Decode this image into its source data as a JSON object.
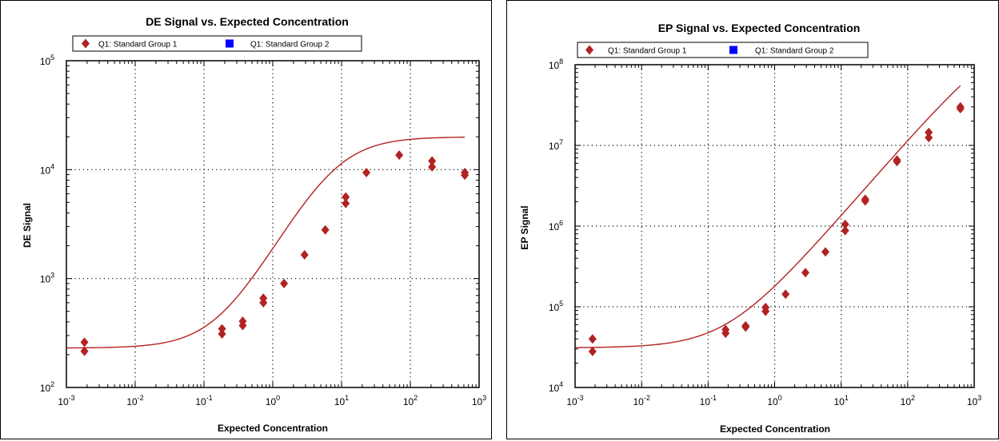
{
  "chart_data": [
    {
      "type": "scatter",
      "title": "DE Signal vs. Expected Concentration",
      "xlabel": "Expected Concentration",
      "ylabel": "DE Signal",
      "xscale": "log",
      "yscale": "log",
      "xlim": [
        0.001,
        1000
      ],
      "ylim": [
        100,
        100000
      ],
      "grid": true,
      "legend_position": "top",
      "x_ticks": [
        {
          "base": "10",
          "exp": "-3",
          "v": 0.001
        },
        {
          "base": "10",
          "exp": "-2",
          "v": 0.01
        },
        {
          "base": "10",
          "exp": "-1",
          "v": 0.1
        },
        {
          "base": "10",
          "exp": "0",
          "v": 1
        },
        {
          "base": "10",
          "exp": "1",
          "v": 10
        },
        {
          "base": "10",
          "exp": "2",
          "v": 100
        },
        {
          "base": "10",
          "exp": "3",
          "v": 1000
        }
      ],
      "y_ticks": [
        {
          "base": "10",
          "exp": "2",
          "v": 100
        },
        {
          "base": "10",
          "exp": "3",
          "v": 1000
        },
        {
          "base": "10",
          "exp": "4",
          "v": 10000
        },
        {
          "base": "10",
          "exp": "5",
          "v": 100000
        }
      ],
      "series": [
        {
          "name": "Q1: Standard Group 1",
          "color": "#b22222",
          "marker": "diamond",
          "points": [
            [
              0.00183,
              260
            ],
            [
              0.00183,
              215
            ],
            [
              0.183,
              345
            ],
            [
              0.183,
              310
            ],
            [
              0.366,
              405
            ],
            [
              0.366,
              370
            ],
            [
              0.73,
              660
            ],
            [
              0.73,
              600
            ],
            [
              1.46,
              900
            ],
            [
              2.9,
              1650
            ],
            [
              5.8,
              2800
            ],
            [
              11.5,
              5600
            ],
            [
              11.5,
              4900
            ],
            [
              23,
              9400
            ],
            [
              69,
              13600
            ],
            [
              207,
              12000
            ],
            [
              207,
              10600
            ],
            [
              620,
              9400
            ],
            [
              620,
              8900
            ]
          ],
          "fit": {
            "bottom": 230,
            "top": 20000,
            "ec50": 8,
            "hill": 1.15
          }
        },
        {
          "name": "Q1: Standard Group 2",
          "color": "#0000ff",
          "marker": "square",
          "points": []
        }
      ]
    },
    {
      "type": "scatter",
      "title": "EP Signal vs. Expected Concentration",
      "xlabel": "Expected Concentration",
      "ylabel": "EP Signal",
      "xscale": "log",
      "yscale": "log",
      "xlim": [
        0.001,
        1000
      ],
      "ylim": [
        10000,
        100000000
      ],
      "grid": true,
      "legend_position": "top",
      "x_ticks": [
        {
          "base": "10",
          "exp": "-3",
          "v": 0.001
        },
        {
          "base": "10",
          "exp": "-2",
          "v": 0.01
        },
        {
          "base": "10",
          "exp": "-1",
          "v": 0.1
        },
        {
          "base": "10",
          "exp": "0",
          "v": 1
        },
        {
          "base": "10",
          "exp": "1",
          "v": 10
        },
        {
          "base": "10",
          "exp": "2",
          "v": 100
        },
        {
          "base": "10",
          "exp": "3",
          "v": 1000
        }
      ],
      "y_ticks": [
        {
          "base": "10",
          "exp": "4",
          "v": 10000
        },
        {
          "base": "10",
          "exp": "5",
          "v": 100000
        },
        {
          "base": "10",
          "exp": "6",
          "v": 1000000
        },
        {
          "base": "10",
          "exp": "7",
          "v": 10000000
        },
        {
          "base": "10",
          "exp": "8",
          "v": 100000000
        }
      ],
      "series": [
        {
          "name": "Q1: Standard Group 1",
          "color": "#b22222",
          "marker": "diamond",
          "points": [
            [
              0.00183,
              40000
            ],
            [
              0.00183,
              28000
            ],
            [
              0.183,
              52000
            ],
            [
              0.183,
              47000
            ],
            [
              0.366,
              58000
            ],
            [
              0.366,
              56000
            ],
            [
              0.73,
              98000
            ],
            [
              0.73,
              88000
            ],
            [
              1.46,
              143000
            ],
            [
              2.9,
              265000
            ],
            [
              5.8,
              480000
            ],
            [
              11.5,
              1050000
            ],
            [
              11.5,
              880000
            ],
            [
              23,
              2150000
            ],
            [
              23,
              2050000
            ],
            [
              69,
              6600000
            ],
            [
              69,
              6300000
            ],
            [
              207,
              14500000
            ],
            [
              207,
              12500000
            ],
            [
              620,
              30000000
            ],
            [
              620,
              28500000
            ]
          ],
          "fit": {
            "bottom": 31000,
            "top": 300000000,
            "ec50": 3000,
            "hill": 0.95
          }
        },
        {
          "name": "Q1: Standard Group 2",
          "color": "#0000ff",
          "marker": "square",
          "points": []
        }
      ]
    }
  ]
}
